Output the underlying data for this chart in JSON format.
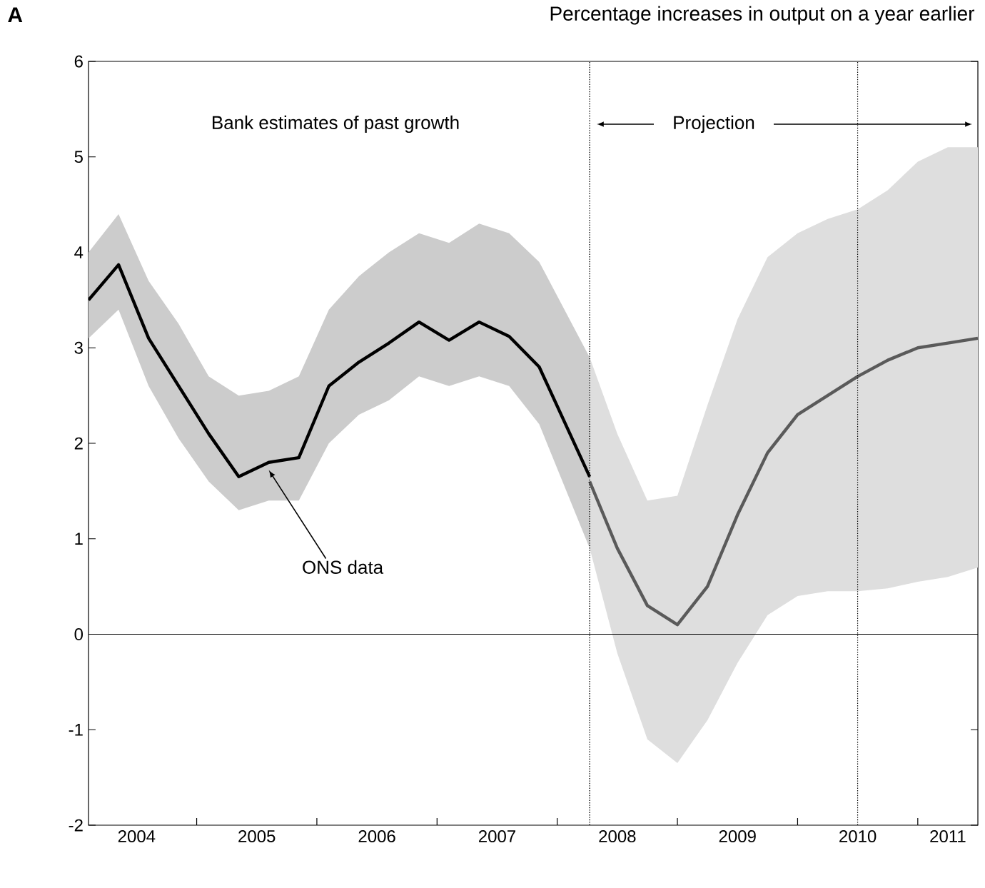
{
  "chart_data": {
    "type": "line",
    "title": "Percentage increases in output on a year earlier",
    "annotations": [
      "A",
      "Bank estimates of past growth",
      "Projection",
      {
        "text": "ONS data",
        "x": 2005.6,
        "y": 1.72
      }
    ],
    "xlim": [
      2004.1,
      2011.5
    ],
    "ylim": [
      -2,
      6
    ],
    "yticks": [
      -2,
      -1,
      0,
      1,
      2,
      3,
      4,
      5,
      6
    ],
    "xticks": [
      {
        "value": 2005,
        "label": null
      },
      {
        "value": 2006,
        "label": null
      },
      {
        "value": 2007,
        "label": null
      },
      {
        "value": 2008,
        "label": null
      },
      {
        "value": 2009,
        "label": null
      },
      {
        "value": 2010,
        "label": null
      },
      {
        "value": 2011,
        "label": null
      },
      {
        "value": 2004.5,
        "label": "2004"
      },
      {
        "value": 2005.5,
        "label": "2005"
      },
      {
        "value": 2006.5,
        "label": "2006"
      },
      {
        "value": 2007.5,
        "label": "2007"
      },
      {
        "value": 2008.5,
        "label": "2008"
      },
      {
        "value": 2009.5,
        "label": "2009"
      },
      {
        "value": 2010.5,
        "label": "2010"
      },
      {
        "value": 2011.25,
        "label": "2011"
      }
    ],
    "ref_lines": [
      {
        "axis": "y",
        "value": 0,
        "line_style": "solid"
      },
      {
        "axis": "x",
        "value": 2008.27,
        "line_style": "dotted"
      },
      {
        "axis": "x",
        "value": 2010.5,
        "line_style": "dotted"
      }
    ],
    "series": [
      {
        "color": "#000000",
        "x": [
          2004.1,
          2004.35,
          2004.6,
          2004.85,
          2005.1,
          2005.35,
          2005.6,
          2005.85,
          2006.1,
          2006.35,
          2006.6,
          2006.85,
          2007.1,
          2007.35,
          2007.6,
          2007.85,
          2008.27
        ],
        "values": [
          3.5,
          3.87,
          3.1,
          2.6,
          2.1,
          1.65,
          1.8,
          1.85,
          2.6,
          2.85,
          3.05,
          3.27,
          3.08,
          3.27,
          3.12,
          2.8,
          1.65
        ],
        "upper": [
          4.0,
          4.4,
          3.7,
          3.25,
          2.7,
          2.5,
          2.55,
          2.7,
          3.4,
          3.75,
          4.0,
          4.2,
          4.1,
          4.3,
          4.2,
          3.9,
          2.9
        ],
        "lower": [
          3.1,
          3.4,
          2.6,
          2.05,
          1.6,
          1.3,
          1.4,
          1.4,
          2.0,
          2.3,
          2.45,
          2.7,
          2.6,
          2.7,
          2.6,
          2.2,
          0.9
        ]
      },
      {
        "color": "#5a5a5a",
        "x": [
          2008.27,
          2008.5,
          2008.75,
          2009.0,
          2009.25,
          2009.5,
          2009.75,
          2010.0,
          2010.25,
          2010.5,
          2010.75,
          2011.0,
          2011.25,
          2011.5
        ],
        "values": [
          1.6,
          0.9,
          0.3,
          0.1,
          0.5,
          1.25,
          1.9,
          2.3,
          2.5,
          2.7,
          2.87,
          3.0,
          3.05,
          3.1
        ],
        "upper": [
          2.9,
          2.1,
          1.4,
          1.45,
          2.4,
          3.3,
          3.95,
          4.2,
          4.35,
          4.45,
          4.65,
          4.95,
          5.1,
          5.1
        ],
        "lower": [
          0.9,
          -0.2,
          -1.1,
          -1.35,
          -0.9,
          -0.3,
          0.2,
          0.4,
          0.45,
          0.45,
          0.48,
          0.55,
          0.6,
          0.7
        ]
      }
    ]
  }
}
